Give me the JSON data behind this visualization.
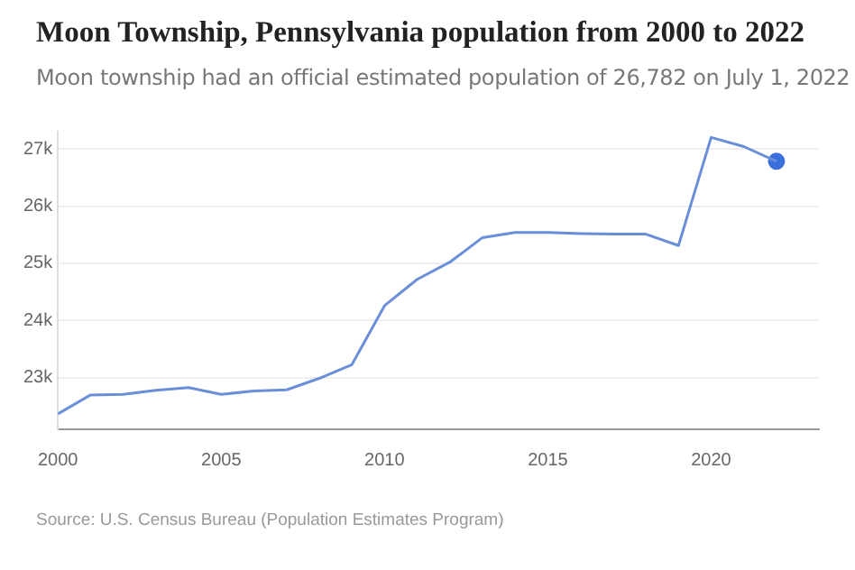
{
  "chart_data": {
    "type": "line",
    "title": "Moon Township, Pennsylvania population from 2000 to 2022",
    "subtitle": "Moon township had an official estimated population of 26,782 on July 1, 2022",
    "annotations": [
      "Source: U.S. Census Bureau (Population Estimates Program)"
    ],
    "x": [
      2000,
      2001,
      2002,
      2003,
      2004,
      2005,
      2006,
      2007,
      2008,
      2009,
      2010,
      2011,
      2012,
      2013,
      2014,
      2015,
      2016,
      2017,
      2018,
      2019,
      2020,
      2021,
      2022
    ],
    "series": [
      {
        "color": "#6a8fd8",
        "marker": "none",
        "values": [
          22370,
          22700,
          22710,
          22780,
          22830,
          22710,
          22770,
          22790,
          22990,
          23230,
          24260,
          24720,
          25020,
          25450,
          25540,
          25540,
          25520,
          25510,
          25510,
          25310,
          27200,
          27040,
          26782
        ]
      },
      {
        "type": "scatter",
        "color": "#3b6fdc",
        "marker": "circle",
        "x": [
          2022
        ],
        "values": [
          26782
        ]
      }
    ],
    "xlim": [
      2000,
      2023.3
    ],
    "xticks": [
      2000,
      2005,
      2010,
      2015,
      2020
    ],
    "ylim": [
      22100,
      27300
    ],
    "yticks": [
      {
        "value": 23000,
        "label": "23k"
      },
      {
        "value": 24000,
        "label": "24k"
      },
      {
        "value": 25000,
        "label": "25k"
      },
      {
        "value": 26000,
        "label": "26k"
      },
      {
        "value": 27000,
        "label": "27k"
      }
    ],
    "grid": "y",
    "legend": false
  }
}
